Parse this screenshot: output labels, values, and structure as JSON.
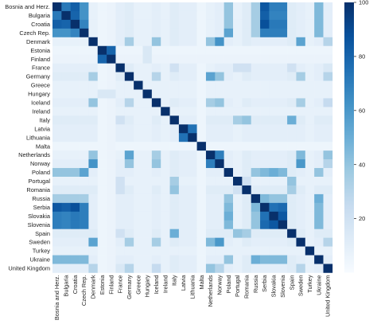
{
  "chart_data": {
    "type": "heatmap",
    "title": "",
    "xlabel": "",
    "ylabel": "",
    "countries": [
      "Bosnia and Herz.",
      "Bulgaria",
      "Croatia",
      "Czech Rep.",
      "Denmark",
      "Estonia",
      "Finland",
      "France",
      "Germany",
      "Greece",
      "Hungary",
      "Iceland",
      "Ireland",
      "Italy",
      "Latvia",
      "Lithuania",
      "Malta",
      "Netherlands",
      "Norway",
      "Poland",
      "Portugal",
      "Romania",
      "Russia",
      "Serbia",
      "Slovakia",
      "Slovenia",
      "Spain",
      "Sweden",
      "Turkey",
      "Ukraine",
      "United Kingdom"
    ],
    "values": [
      [
        100,
        72,
        82,
        62,
        8,
        5,
        6,
        10,
        12,
        8,
        8,
        10,
        8,
        12,
        10,
        10,
        5,
        8,
        10,
        40,
        8,
        12,
        35,
        85,
        70,
        70,
        12,
        10,
        8,
        45,
        10
      ],
      [
        72,
        100,
        80,
        62,
        8,
        5,
        6,
        10,
        12,
        8,
        8,
        10,
        8,
        12,
        10,
        10,
        5,
        8,
        10,
        40,
        8,
        12,
        35,
        82,
        68,
        68,
        12,
        10,
        8,
        45,
        10
      ],
      [
        82,
        80,
        100,
        68,
        8,
        5,
        6,
        10,
        12,
        8,
        8,
        10,
        8,
        12,
        10,
        10,
        5,
        8,
        10,
        40,
        8,
        12,
        35,
        88,
        72,
        72,
        12,
        10,
        8,
        45,
        10
      ],
      [
        62,
        62,
        68,
        100,
        8,
        5,
        6,
        10,
        12,
        8,
        8,
        10,
        8,
        12,
        10,
        10,
        5,
        8,
        10,
        55,
        8,
        12,
        35,
        70,
        70,
        70,
        12,
        10,
        8,
        45,
        10
      ],
      [
        8,
        8,
        8,
        8,
        100,
        5,
        6,
        10,
        35,
        8,
        8,
        40,
        8,
        12,
        10,
        10,
        5,
        40,
        62,
        10,
        8,
        12,
        10,
        10,
        10,
        10,
        12,
        55,
        8,
        10,
        30
      ],
      [
        5,
        5,
        5,
        5,
        5,
        100,
        80,
        5,
        5,
        5,
        15,
        5,
        5,
        5,
        5,
        5,
        5,
        5,
        5,
        5,
        5,
        5,
        5,
        5,
        5,
        5,
        5,
        5,
        5,
        5,
        5
      ],
      [
        6,
        6,
        6,
        6,
        6,
        80,
        100,
        6,
        6,
        6,
        15,
        6,
        6,
        6,
        6,
        6,
        6,
        6,
        6,
        6,
        6,
        6,
        6,
        6,
        6,
        6,
        6,
        6,
        6,
        6,
        6
      ],
      [
        10,
        10,
        10,
        10,
        10,
        5,
        6,
        100,
        12,
        8,
        8,
        10,
        8,
        20,
        10,
        10,
        5,
        8,
        10,
        10,
        20,
        20,
        10,
        10,
        10,
        10,
        20,
        10,
        8,
        10,
        15
      ],
      [
        12,
        12,
        12,
        12,
        35,
        5,
        6,
        12,
        100,
        8,
        8,
        30,
        8,
        12,
        10,
        10,
        5,
        55,
        40,
        10,
        8,
        12,
        10,
        10,
        10,
        10,
        12,
        35,
        8,
        10,
        30
      ],
      [
        8,
        8,
        8,
        8,
        8,
        5,
        6,
        8,
        8,
        100,
        8,
        8,
        8,
        8,
        8,
        8,
        5,
        8,
        8,
        8,
        8,
        8,
        8,
        8,
        8,
        8,
        8,
        8,
        8,
        8,
        8
      ],
      [
        8,
        8,
        8,
        8,
        8,
        15,
        15,
        8,
        8,
        8,
        100,
        8,
        8,
        8,
        8,
        8,
        5,
        8,
        8,
        8,
        8,
        8,
        8,
        8,
        8,
        8,
        8,
        8,
        8,
        8,
        8
      ],
      [
        10,
        10,
        10,
        10,
        40,
        5,
        6,
        10,
        30,
        8,
        8,
        100,
        8,
        12,
        10,
        10,
        5,
        35,
        40,
        10,
        8,
        12,
        10,
        10,
        10,
        10,
        12,
        35,
        8,
        10,
        25
      ],
      [
        8,
        8,
        8,
        8,
        8,
        5,
        6,
        8,
        8,
        8,
        8,
        8,
        100,
        8,
        8,
        8,
        5,
        8,
        8,
        8,
        8,
        8,
        8,
        8,
        8,
        8,
        8,
        8,
        8,
        8,
        8
      ],
      [
        12,
        12,
        12,
        12,
        12,
        5,
        6,
        20,
        12,
        8,
        8,
        12,
        8,
        100,
        10,
        10,
        5,
        12,
        12,
        12,
        35,
        40,
        12,
        12,
        12,
        12,
        50,
        12,
        8,
        12,
        12
      ],
      [
        10,
        10,
        10,
        10,
        10,
        5,
        6,
        10,
        10,
        8,
        8,
        10,
        8,
        10,
        100,
        75,
        5,
        10,
        10,
        10,
        8,
        10,
        10,
        10,
        10,
        10,
        10,
        10,
        8,
        10,
        10
      ],
      [
        10,
        10,
        10,
        10,
        10,
        5,
        6,
        10,
        10,
        8,
        8,
        10,
        8,
        10,
        75,
        100,
        5,
        10,
        10,
        10,
        8,
        10,
        10,
        10,
        10,
        10,
        10,
        10,
        8,
        10,
        10
      ],
      [
        5,
        5,
        5,
        5,
        5,
        5,
        6,
        5,
        5,
        5,
        5,
        5,
        5,
        5,
        5,
        5,
        100,
        5,
        5,
        5,
        5,
        5,
        5,
        5,
        5,
        5,
        5,
        5,
        5,
        5,
        5
      ],
      [
        8,
        8,
        8,
        8,
        40,
        5,
        6,
        8,
        55,
        8,
        8,
        35,
        8,
        12,
        10,
        10,
        5,
        100,
        70,
        10,
        8,
        12,
        10,
        10,
        10,
        10,
        12,
        45,
        8,
        10,
        40
      ],
      [
        10,
        10,
        10,
        10,
        62,
        5,
        6,
        10,
        40,
        8,
        8,
        40,
        8,
        12,
        10,
        10,
        5,
        70,
        100,
        10,
        8,
        12,
        10,
        10,
        10,
        10,
        12,
        60,
        8,
        10,
        30
      ],
      [
        40,
        40,
        40,
        55,
        10,
        5,
        6,
        10,
        10,
        8,
        8,
        10,
        8,
        12,
        10,
        10,
        5,
        10,
        10,
        100,
        8,
        12,
        40,
        45,
        50,
        45,
        12,
        10,
        8,
        40,
        10
      ],
      [
        8,
        8,
        8,
        8,
        8,
        5,
        6,
        20,
        8,
        8,
        8,
        8,
        8,
        35,
        8,
        8,
        5,
        8,
        8,
        8,
        100,
        20,
        8,
        8,
        8,
        8,
        40,
        8,
        8,
        8,
        8
      ],
      [
        12,
        12,
        12,
        12,
        12,
        5,
        6,
        20,
        12,
        8,
        8,
        12,
        8,
        40,
        10,
        10,
        5,
        12,
        12,
        12,
        20,
        100,
        12,
        12,
        12,
        12,
        35,
        12,
        8,
        12,
        12
      ],
      [
        35,
        35,
        35,
        35,
        10,
        5,
        6,
        10,
        10,
        8,
        8,
        10,
        8,
        12,
        10,
        10,
        5,
        10,
        10,
        40,
        8,
        12,
        100,
        45,
        40,
        40,
        12,
        10,
        8,
        50,
        10
      ],
      [
        85,
        82,
        88,
        70,
        10,
        5,
        6,
        10,
        10,
        8,
        8,
        10,
        8,
        12,
        10,
        10,
        5,
        10,
        10,
        45,
        8,
        12,
        45,
        100,
        75,
        78,
        12,
        10,
        8,
        45,
        10
      ],
      [
        70,
        68,
        72,
        70,
        10,
        5,
        6,
        10,
        10,
        8,
        8,
        10,
        8,
        12,
        10,
        10,
        5,
        10,
        10,
        50,
        8,
        12,
        40,
        75,
        100,
        85,
        12,
        10,
        8,
        45,
        10
      ],
      [
        70,
        68,
        72,
        70,
        10,
        5,
        6,
        10,
        10,
        8,
        8,
        10,
        8,
        12,
        10,
        10,
        5,
        10,
        10,
        45,
        8,
        12,
        40,
        78,
        85,
        100,
        12,
        10,
        8,
        45,
        10
      ],
      [
        12,
        12,
        12,
        12,
        12,
        5,
        6,
        20,
        12,
        8,
        8,
        12,
        8,
        50,
        10,
        10,
        5,
        12,
        12,
        12,
        40,
        35,
        12,
        12,
        12,
        12,
        100,
        12,
        8,
        12,
        12
      ],
      [
        10,
        10,
        10,
        10,
        55,
        5,
        6,
        10,
        35,
        8,
        8,
        35,
        8,
        12,
        10,
        10,
        5,
        45,
        60,
        10,
        8,
        12,
        10,
        10,
        10,
        10,
        12,
        100,
        8,
        10,
        30
      ],
      [
        8,
        8,
        8,
        8,
        8,
        5,
        6,
        8,
        8,
        8,
        8,
        8,
        8,
        8,
        8,
        8,
        5,
        8,
        8,
        8,
        8,
        8,
        8,
        8,
        8,
        8,
        8,
        8,
        100,
        8,
        8
      ],
      [
        45,
        45,
        45,
        45,
        10,
        5,
        6,
        10,
        10,
        8,
        8,
        10,
        8,
        12,
        10,
        10,
        5,
        10,
        10,
        40,
        8,
        12,
        50,
        45,
        45,
        45,
        12,
        10,
        8,
        100,
        10
      ],
      [
        10,
        10,
        10,
        10,
        30,
        5,
        6,
        15,
        30,
        8,
        8,
        25,
        8,
        12,
        10,
        10,
        5,
        40,
        30,
        10,
        8,
        12,
        10,
        10,
        10,
        10,
        12,
        30,
        8,
        10,
        100
      ]
    ],
    "colorbar": {
      "ticks": [
        20,
        40,
        60,
        80,
        100
      ],
      "range": [
        0,
        100
      ],
      "color_low": "#f7fbff",
      "color_high": "#08306b"
    },
    "grid": false,
    "legend": "right"
  }
}
